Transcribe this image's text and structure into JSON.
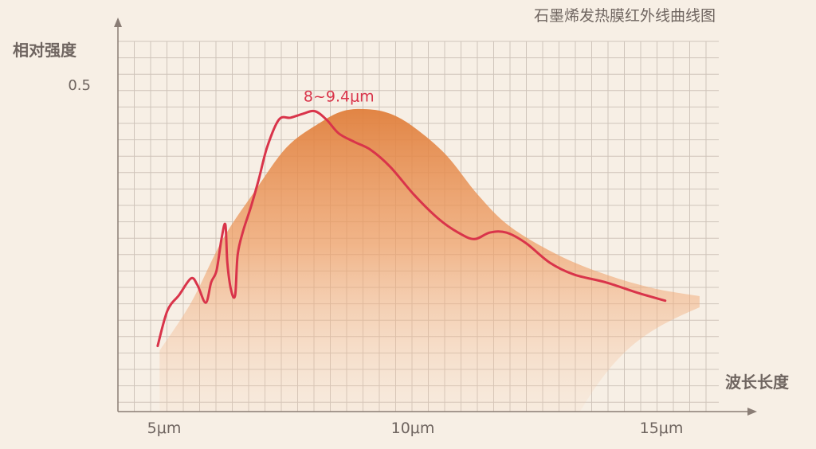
{
  "chart_data": {
    "type": "area",
    "title": "石墨烯发热膜红外线曲线图",
    "ylabel": "相对强度",
    "xlabel": "波长长度",
    "xticks": [
      {
        "value": 5,
        "label": "5μm"
      },
      {
        "value": 10,
        "label": "10μm"
      },
      {
        "value": 15,
        "label": "15μm"
      }
    ],
    "yticks": [
      {
        "value": 0.5,
        "label": "0.5"
      }
    ],
    "xlim": [
      3.96,
      16.9
    ],
    "ylim": [
      0,
      0.56
    ],
    "grid": true,
    "annotation": {
      "text": "8~9.4μm",
      "x": 8.3,
      "y": 0.48
    },
    "series": [
      {
        "kind": "filled-area",
        "color": "#e8894a",
        "x": [
          4.81,
          5.45,
          6.1,
          6.75,
          7.4,
          8.05,
          8.54,
          9.03,
          9.51,
          10.0,
          10.65,
          11.3,
          11.95,
          12.92,
          13.9,
          14.87,
          15.81
        ],
        "y": [
          0.093,
          0.166,
          0.263,
          0.336,
          0.403,
          0.439,
          0.458,
          0.461,
          0.454,
          0.433,
          0.391,
          0.33,
          0.282,
          0.239,
          0.209,
          0.188,
          0.176
        ]
      },
      {
        "kind": "line",
        "color": "#d9344a",
        "x": [
          4.77,
          4.97,
          5.21,
          5.45,
          5.58,
          5.75,
          5.86,
          5.97,
          6.07,
          6.15,
          6.19,
          6.27,
          6.35,
          6.4,
          6.51,
          6.67,
          6.83,
          7.0,
          7.24,
          7.48,
          7.73,
          7.97,
          8.21,
          8.46,
          8.78,
          9.11,
          9.51,
          10.0,
          10.49,
          10.89,
          11.22,
          11.54,
          11.87,
          12.27,
          12.76,
          13.25,
          13.9,
          14.55,
          15.11
        ],
        "y": [
          0.1,
          0.154,
          0.178,
          0.203,
          0.193,
          0.166,
          0.197,
          0.215,
          0.263,
          0.285,
          0.227,
          0.184,
          0.178,
          0.239,
          0.275,
          0.312,
          0.354,
          0.403,
          0.445,
          0.448,
          0.454,
          0.458,
          0.445,
          0.424,
          0.411,
          0.399,
          0.373,
          0.33,
          0.294,
          0.273,
          0.263,
          0.273,
          0.273,
          0.257,
          0.227,
          0.209,
          0.197,
          0.181,
          0.169
        ]
      }
    ]
  }
}
